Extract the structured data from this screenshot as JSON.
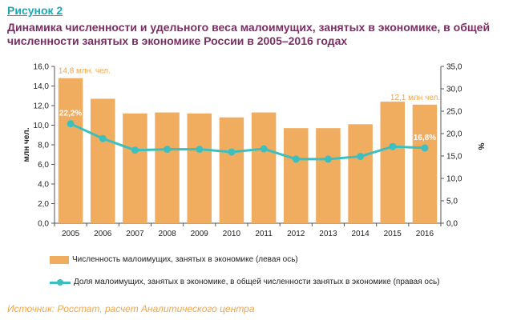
{
  "figure_label": "Рисунок 2",
  "title": "Динамика численности и удельного веса малоимущих, занятых в экономике, в общей численности занятых в экономике России в 2005–2016 годах",
  "source": "Источник: Росстат, расчет Аналитического центра",
  "colors": {
    "bars": "#f0ad5f",
    "line": "#3dbfbf",
    "title": "#7a2f63",
    "annotation": "#f0a64c"
  },
  "chart_data": {
    "type": "bar",
    "categories": [
      "2005",
      "2006",
      "2007",
      "2008",
      "2009",
      "2010",
      "2011",
      "2012",
      "2013",
      "2014",
      "2015",
      "2016"
    ],
    "series": [
      {
        "name": "Численность малоимущих, занятых в экономике (левая ось)",
        "type": "bar",
        "axis": "left",
        "values": [
          14.8,
          12.7,
          11.2,
          11.3,
          11.2,
          10.8,
          11.3,
          9.7,
          9.7,
          10.1,
          12.4,
          12.1
        ]
      },
      {
        "name": "Доля малоимущих, занятых в экономике, в общей численности занятых в экономике (правая ось)",
        "type": "line",
        "axis": "right",
        "values": [
          22.2,
          18.9,
          16.3,
          16.5,
          16.5,
          15.9,
          16.6,
          14.3,
          14.3,
          14.9,
          17.1,
          16.8
        ]
      }
    ],
    "ylabel_left": "млн чел.",
    "ylabel_right": "%",
    "ylim_left": [
      0,
      16
    ],
    "ylim_right": [
      0,
      35
    ],
    "yticks_left": [
      "0,0",
      "2,0",
      "4,0",
      "6,0",
      "8,0",
      "10,0",
      "12,0",
      "14,0",
      "16,0"
    ],
    "yticks_right": [
      "0,0",
      "5,0",
      "10,0",
      "15,0",
      "20,0",
      "25,0",
      "30,0",
      "35,0"
    ],
    "annotations": [
      {
        "text": "14,8 млн. чел.",
        "category": "2005",
        "series": 0
      },
      {
        "text": "22,2%",
        "category": "2005",
        "series": 1
      },
      {
        "text": "12,1 млн чел.",
        "category": "2016",
        "series": 0
      },
      {
        "text": "16,8%",
        "category": "2016",
        "series": 1
      }
    ],
    "grid": false,
    "legend_position": "bottom"
  }
}
